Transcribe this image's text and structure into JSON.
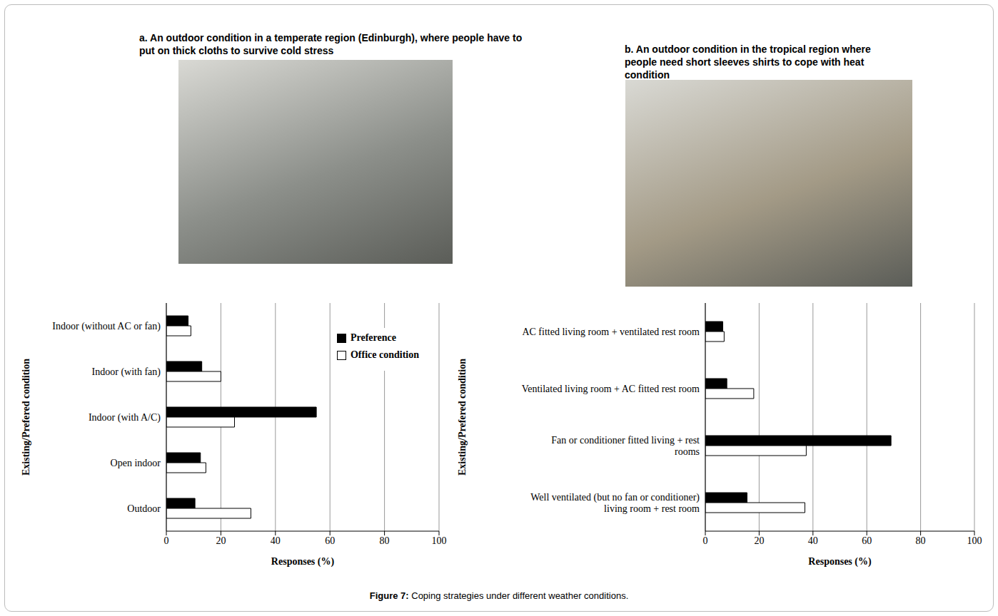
{
  "figure": {
    "caption": "Figure 7: Coping strategies under different weather conditions.",
    "photos": [
      {
        "caption": "a. An outdoor condition in a temperate region (Edinburgh), where people have to put on thick cloths to survive cold stress"
      },
      {
        "caption": "b. An outdoor condition in the tropical region where people need short sleeves shirts to cope with heat condition"
      }
    ]
  },
  "chart_data": [
    {
      "type": "bar",
      "orientation": "horizontal",
      "categories": [
        "Indoor (without AC or fan)",
        "Indoor (with fan)",
        "Indoor (with A/C)",
        "Open indoor",
        "Outdoor"
      ],
      "series": [
        {
          "name": "Preference",
          "color": "#000000",
          "values": [
            8,
            13,
            55,
            12.5,
            10.5
          ]
        },
        {
          "name": "Office condition",
          "color": "#ffffff",
          "values": [
            9,
            20,
            25,
            14.5,
            31
          ]
        }
      ],
      "x_label": "Responses (%)",
      "y_label": "Existing/Prefered condition",
      "xlim": [
        0,
        100
      ],
      "xticks": [
        0,
        20,
        40,
        60,
        80,
        100
      ],
      "grid": true,
      "legend": "top-right"
    },
    {
      "type": "bar",
      "orientation": "horizontal",
      "categories": [
        "AC fitted living room + ventilated rest room",
        "Ventilated living room + AC fitted rest room",
        "Fan or conditioner fitted living + rest rooms",
        "Well ventilated (but no fan or conditioner) living room + rest room"
      ],
      "series": [
        {
          "name": "Preference",
          "color": "#000000",
          "values": [
            6.5,
            8,
            69,
            15.5
          ]
        },
        {
          "name": "Office condition",
          "color": "#ffffff",
          "values": [
            7,
            18,
            37.5,
            37
          ]
        }
      ],
      "x_label": "Responses (%)",
      "y_label": "Existing/Prefered condition",
      "xlim": [
        0,
        100
      ],
      "xticks": [
        0,
        20,
        40,
        60,
        80,
        100
      ],
      "grid": true
    }
  ]
}
